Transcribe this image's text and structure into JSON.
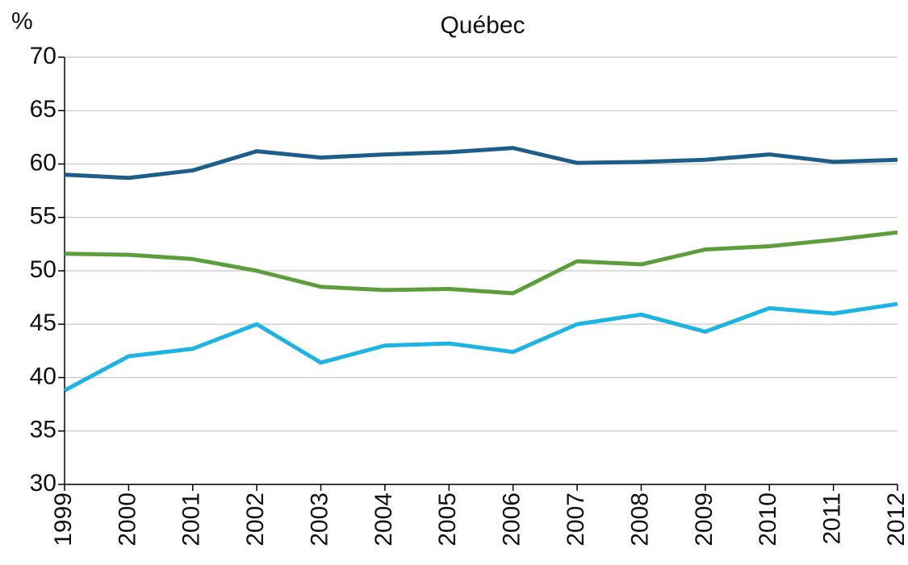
{
  "chart_data": {
    "type": "line",
    "title": "Québec",
    "y_label": "%",
    "categories": [
      "1999",
      "2000",
      "2001",
      "2002",
      "2003",
      "2004",
      "2005",
      "2006",
      "2007",
      "2008",
      "2009",
      "2010",
      "2011",
      "2012"
    ],
    "series": [
      {
        "color": "#1c5d8a",
        "values": [
          59.0,
          58.7,
          59.4,
          61.2,
          60.6,
          60.9,
          61.1,
          61.5,
          60.1,
          60.2,
          60.4,
          60.9,
          60.2,
          60.4
        ]
      },
      {
        "color": "#5c9d3c",
        "values": [
          51.6,
          51.5,
          51.1,
          50.0,
          48.5,
          48.2,
          48.3,
          47.9,
          50.9,
          50.6,
          52.0,
          52.3,
          52.9,
          53.6
        ]
      },
      {
        "color": "#1db4e4",
        "values": [
          38.8,
          42.0,
          42.7,
          45.0,
          41.4,
          43.0,
          43.2,
          42.4,
          45.0,
          45.9,
          44.3,
          46.5,
          46.0,
          46.9
        ]
      }
    ],
    "ylim": [
      30,
      70
    ],
    "yticks": [
      30,
      35,
      40,
      45,
      50,
      55,
      60,
      65,
      70
    ],
    "grid": true
  }
}
